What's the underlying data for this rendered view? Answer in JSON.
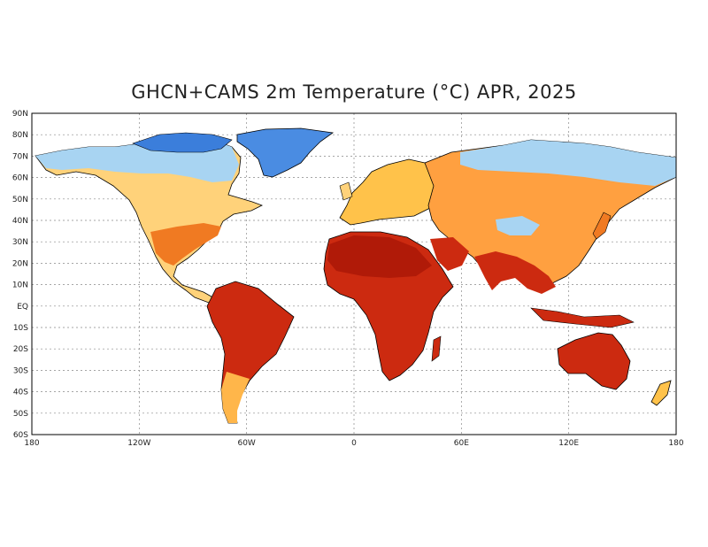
{
  "map": {
    "title": "GHCN+CAMS 2m Temperature (°C) APR, 2025",
    "projection": "equirectangular",
    "lon_range": [
      -180,
      180
    ],
    "lat_range": [
      -60,
      90
    ],
    "grid": true,
    "lat_ticks": [
      {
        "lat": 90,
        "label": "90N"
      },
      {
        "lat": 80,
        "label": "80N"
      },
      {
        "lat": 70,
        "label": "70N"
      },
      {
        "lat": 60,
        "label": "60N"
      },
      {
        "lat": 50,
        "label": "50N"
      },
      {
        "lat": 40,
        "label": "40N"
      },
      {
        "lat": 30,
        "label": "30N"
      },
      {
        "lat": 20,
        "label": "20N"
      },
      {
        "lat": 10,
        "label": "10N"
      },
      {
        "lat": 0,
        "label": "EQ"
      },
      {
        "lat": -10,
        "label": "10S"
      },
      {
        "lat": -20,
        "label": "20S"
      },
      {
        "lat": -30,
        "label": "30S"
      },
      {
        "lat": -40,
        "label": "40S"
      },
      {
        "lat": -50,
        "label": "50S"
      },
      {
        "lat": -60,
        "label": "60S"
      }
    ],
    "lon_ticks": [
      {
        "lon": -180,
        "label": "180"
      },
      {
        "lon": -120,
        "label": "120W"
      },
      {
        "lon": -60,
        "label": "60W"
      },
      {
        "lon": 0,
        "label": "0"
      },
      {
        "lon": 60,
        "label": "60E"
      },
      {
        "lon": 120,
        "label": "120E"
      },
      {
        "lon": 180,
        "label": "180"
      }
    ],
    "colors": {
      "very_cold": "#2f6fd6",
      "cold": "#5fa0e8",
      "cool": "#a8d4f2",
      "mild": "#fff2b0",
      "warm": "#ffc24a",
      "hot": "#f0701e",
      "very_hot": "#cc2a10",
      "extreme": "#b01a08",
      "coast": "#000000",
      "grid": "#888888"
    }
  }
}
